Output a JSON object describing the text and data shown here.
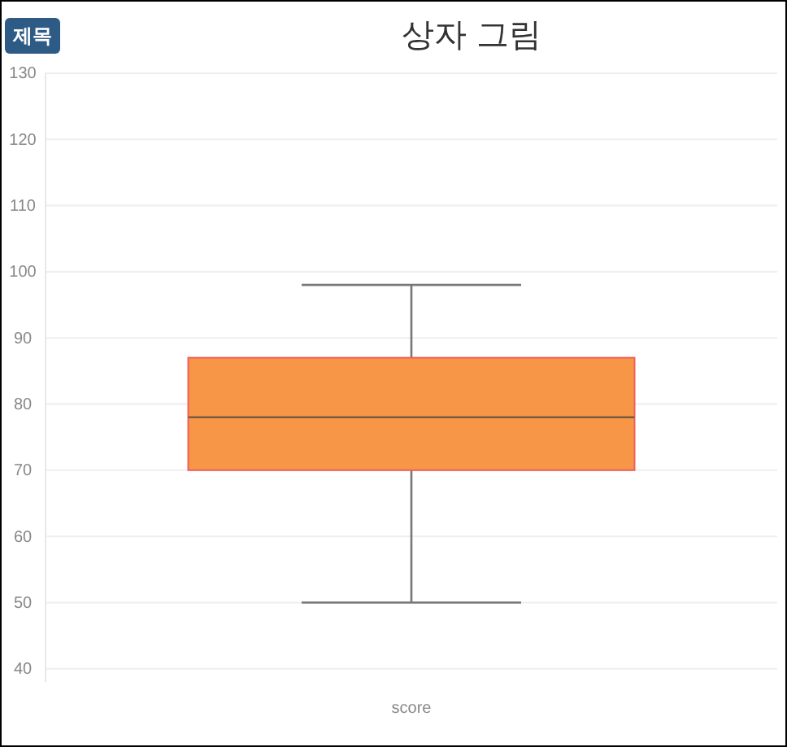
{
  "chart_data": {
    "type": "box",
    "title": "상자 그림",
    "annotations": [
      "제목"
    ],
    "categories": [
      "score"
    ],
    "boxes": [
      {
        "low": 50,
        "q1": 70,
        "median": 78,
        "q3": 87,
        "high": 98
      }
    ],
    "color": "#f79646",
    "ylim": [
      38,
      130
    ],
    "yticks": [
      40,
      50,
      60,
      70,
      80,
      90,
      100,
      110,
      120,
      130
    ],
    "grid": "y"
  }
}
